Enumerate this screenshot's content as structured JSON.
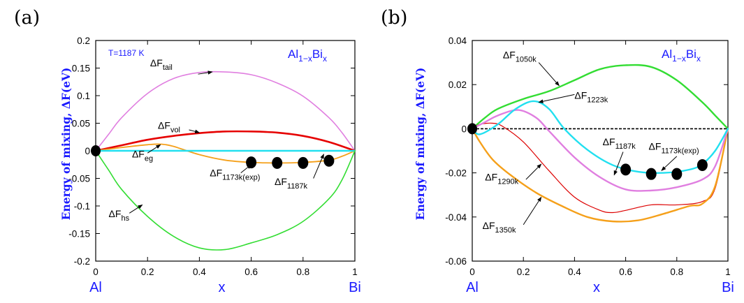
{
  "colors": {
    "blue": "#1a1aff",
    "magenta": "#e07fe0",
    "red": "#e60000",
    "orange": "#f5a01a",
    "cyan": "#22e0f0",
    "green": "#33dd33",
    "darkred": "#dd0000",
    "black": "#000000"
  },
  "chart_data": [
    {
      "type": "line",
      "panel_label": "(a)",
      "ylabel": "Energy of mixing, ΔF(eV)",
      "xlabel": "x",
      "left_element": "Al",
      "right_element": "Bi",
      "system_prefix": "Al",
      "system_sub": "1−x",
      "system_mid": "Bi",
      "system_sub2": "x",
      "temperature_note": "T=1187 K",
      "xlim": [
        0,
        1
      ],
      "ylim": [
        -0.2,
        0.2
      ],
      "xticks": [
        "0",
        "0.2",
        "0.4",
        "0.6",
        "0.8",
        "1"
      ],
      "yticks": [
        "0.2",
        "0.15",
        "0.1",
        "0.05",
        "0",
        "-0.05",
        "-0.1",
        "-0.15",
        "-0.2"
      ],
      "xtick_values": [
        0,
        0.2,
        0.4,
        0.6,
        0.8,
        1
      ],
      "ytick_values": [
        0.2,
        0.15,
        0.1,
        0.05,
        0,
        -0.05,
        -0.1,
        -0.15,
        -0.2
      ],
      "zero_line": false,
      "series": [
        {
          "name": "ΔF_tail",
          "color": "magenta",
          "width": 1.6,
          "x": [
            0,
            0.05,
            0.1,
            0.2,
            0.3,
            0.4,
            0.5,
            0.6,
            0.7,
            0.8,
            0.9,
            0.95,
            1
          ],
          "y": [
            0,
            0.03,
            0.06,
            0.104,
            0.131,
            0.142,
            0.143,
            0.138,
            0.123,
            0.099,
            0.06,
            0.033,
            0
          ]
        },
        {
          "name": "ΔF_vol",
          "color": "red",
          "width": 2.6,
          "x": [
            0,
            0.1,
            0.2,
            0.3,
            0.4,
            0.5,
            0.6,
            0.7,
            0.8,
            0.9,
            1
          ],
          "y": [
            0,
            0.01,
            0.02,
            0.027,
            0.032,
            0.035,
            0.035,
            0.033,
            0.027,
            0.016,
            0
          ]
        },
        {
          "name": "ΔF_eg",
          "color": "orange",
          "width": 1.8,
          "x": [
            0,
            0.1,
            0.2,
            0.25,
            0.3,
            0.4,
            0.5,
            0.6,
            0.7,
            0.8,
            0.9,
            0.95,
            1
          ],
          "y": [
            0,
            0.006,
            0.011,
            0.012,
            0.008,
            -0.007,
            -0.017,
            -0.021,
            -0.022,
            -0.021,
            -0.017,
            -0.01,
            0
          ]
        },
        {
          "name": "ΔF_1187k",
          "color": "cyan",
          "width": 2.4,
          "x": [
            0,
            0.5,
            1
          ],
          "y": [
            0,
            0,
            0
          ]
        },
        {
          "name": "ΔF_hs",
          "color": "green",
          "width": 1.6,
          "x": [
            0,
            0.05,
            0.1,
            0.2,
            0.3,
            0.4,
            0.5,
            0.6,
            0.7,
            0.8,
            0.9,
            0.95,
            1
          ],
          "y": [
            0,
            -0.035,
            -0.07,
            -0.119,
            -0.155,
            -0.176,
            -0.179,
            -0.167,
            -0.152,
            -0.128,
            -0.087,
            -0.053,
            0
          ]
        }
      ],
      "points": {
        "name": "ΔF_1173k(exp)",
        "x": [
          0.6,
          0.7,
          0.8,
          0.9
        ],
        "y": [
          -0.021,
          -0.022,
          -0.022,
          -0.018
        ]
      },
      "origin_point": {
        "x": 0,
        "y": 0
      },
      "annotations": [
        {
          "base": "ΔF",
          "sub": "tail",
          "tx": 0.21,
          "ty": 0.153,
          "ax": 0.395,
          "ay": 0.139,
          "hx": 0.45,
          "hy": 0.143
        },
        {
          "base": "ΔF",
          "sub": "vol",
          "tx": 0.24,
          "ty": 0.04,
          "ax": 0.36,
          "ay": 0.038,
          "hx": 0.4,
          "hy": 0.033
        },
        {
          "base": "ΔF",
          "sub": "eg",
          "tx": 0.14,
          "ty": -0.012,
          "ax": 0.2,
          "ay": -0.004,
          "hx": 0.25,
          "hy": 0.011
        },
        {
          "base": "ΔF",
          "sub": "1173k(exp)",
          "tx": 0.44,
          "ty": -0.046,
          "ax": 0.56,
          "ay": -0.04,
          "hx": 0.6,
          "hy": -0.025
        },
        {
          "base": "ΔF",
          "sub": "1187k",
          "tx": 0.69,
          "ty": -0.062,
          "ax": 0.84,
          "ay": -0.05,
          "hx": 0.88,
          "hy": -0.006
        },
        {
          "base": "ΔF",
          "sub": "hs",
          "tx": 0.05,
          "ty": -0.12,
          "ax": 0.13,
          "ay": -0.113,
          "hx": 0.18,
          "hy": -0.098
        }
      ]
    },
    {
      "type": "line",
      "panel_label": "(b)",
      "ylabel": "Energy of mixing, ΔF(eV)",
      "xlabel": "x",
      "left_element": "Al",
      "right_element": "Bi",
      "system_prefix": "Al",
      "system_sub": "1−x",
      "system_mid": "Bi",
      "system_sub2": "x",
      "temperature_note": "",
      "xlim": [
        0,
        1
      ],
      "ylim": [
        -0.06,
        0.04
      ],
      "xticks": [
        "0",
        "0.2",
        "0.4",
        "0.6",
        "0.8",
        "1"
      ],
      "yticks": [
        "0.04",
        "0.02",
        "0",
        "-0.02",
        "-0.04",
        "-0.06"
      ],
      "xtick_values": [
        0,
        0.2,
        0.4,
        0.6,
        0.8,
        1
      ],
      "ytick_values": [
        0.04,
        0.02,
        0,
        -0.02,
        -0.04,
        -0.06
      ],
      "zero_line": true,
      "series": [
        {
          "name": "ΔF_1050k",
          "color": "green",
          "width": 2.4,
          "x": [
            0,
            0.05,
            0.1,
            0.2,
            0.3,
            0.4,
            0.5,
            0.6,
            0.7,
            0.8,
            0.9,
            0.95,
            1
          ],
          "y": [
            0,
            0.005,
            0.009,
            0.0135,
            0.017,
            0.022,
            0.027,
            0.0288,
            0.028,
            0.022,
            0.012,
            0.006,
            0
          ]
        },
        {
          "name": "ΔF_1290k",
          "color": "darkred",
          "width": 1.2,
          "x": [
            0,
            0.03,
            0.08,
            0.12,
            0.2,
            0.3,
            0.4,
            0.5,
            0.55,
            0.6,
            0.7,
            0.8,
            0.9,
            0.95,
            1
          ],
          "y": [
            0,
            0.002,
            0.0025,
            0.001,
            -0.006,
            -0.019,
            -0.031,
            -0.037,
            -0.038,
            -0.037,
            -0.0345,
            -0.0345,
            -0.033,
            -0.027,
            0
          ]
        },
        {
          "name": "ΔF_1350k",
          "color": "orange",
          "width": 2.4,
          "x": [
            0,
            0.03,
            0.08,
            0.15,
            0.25,
            0.35,
            0.45,
            0.55,
            0.65,
            0.75,
            0.85,
            0.9,
            0.95,
            1
          ],
          "y": [
            0,
            -0.006,
            -0.014,
            -0.021,
            -0.029,
            -0.035,
            -0.04,
            -0.042,
            -0.0415,
            -0.0385,
            -0.035,
            -0.034,
            -0.026,
            0
          ]
        },
        {
          "name": "ΔF_1187k",
          "color": "magenta",
          "width": 2.4,
          "x": [
            0,
            0.05,
            0.1,
            0.18,
            0.25,
            0.3,
            0.4,
            0.5,
            0.6,
            0.7,
            0.8,
            0.9,
            0.95,
            1
          ],
          "y": [
            0,
            0.003,
            0.006,
            0.0085,
            0.005,
            -0.001,
            -0.013,
            -0.022,
            -0.0275,
            -0.028,
            -0.0265,
            -0.023,
            -0.017,
            0
          ]
        },
        {
          "name": "ΔF_1223k",
          "color": "cyan",
          "width": 2.4,
          "x": [
            0,
            0.03,
            0.1,
            0.17,
            0.24,
            0.3,
            0.36,
            0.45,
            0.55,
            0.65,
            0.75,
            0.85,
            0.9,
            0.95,
            1
          ],
          "y": [
            0,
            -0.0025,
            0.002,
            0.009,
            0.0125,
            0.009,
            0.0,
            -0.0095,
            -0.0165,
            -0.0195,
            -0.02,
            -0.0185,
            -0.016,
            -0.01,
            0
          ]
        }
      ],
      "points": {
        "name": "ΔF_1173k(exp)",
        "x": [
          0.6,
          0.7,
          0.8,
          0.9
        ],
        "y": [
          -0.0185,
          -0.0205,
          -0.0205,
          -0.0165
        ]
      },
      "origin_point": {
        "x": 0,
        "y": 0
      },
      "annotations": [
        {
          "base": "ΔF",
          "sub": "1050k",
          "tx": 0.12,
          "ty": 0.032,
          "ax": 0.26,
          "ay": 0.03,
          "hx": 0.34,
          "hy": 0.0195
        },
        {
          "base": "ΔF",
          "sub": "1223k",
          "tx": 0.4,
          "ty": 0.0135,
          "ax": 0.4,
          "ay": 0.0155,
          "hx": 0.26,
          "hy": 0.012
        },
        {
          "base": "ΔF",
          "sub": "1187k",
          "tx": 0.51,
          "ty": -0.0075,
          "ax": 0.59,
          "ay": -0.0105,
          "hx": 0.555,
          "hy": -0.021
        },
        {
          "base": "ΔF",
          "sub": "1173k(exp)",
          "tx": 0.69,
          "ty": -0.0095,
          "ax": 0.8,
          "ay": -0.0125,
          "hx": 0.74,
          "hy": -0.019
        },
        {
          "base": "ΔF",
          "sub": "1290k",
          "tx": 0.05,
          "ty": -0.0235,
          "ax": 0.21,
          "ay": -0.023,
          "hx": 0.27,
          "hy": -0.016
        },
        {
          "base": "ΔF",
          "sub": "1350k",
          "tx": 0.04,
          "ty": -0.0455,
          "ax": 0.2,
          "ay": -0.0435,
          "hx": 0.27,
          "hy": -0.031
        }
      ]
    }
  ]
}
